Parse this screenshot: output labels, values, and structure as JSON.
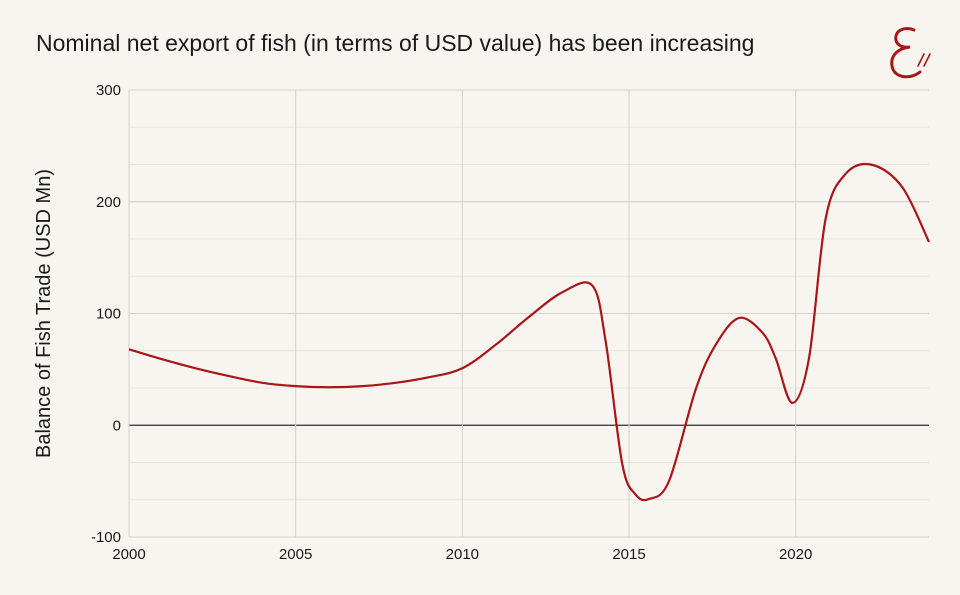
{
  "header": {
    "title": "Nominal net export of fish (in terms of USD value) has been increasing"
  },
  "colors": {
    "line": "#a81616",
    "background": "#f8f5f1",
    "grid_major": "#d3d0cc",
    "grid_minor": "#e7e4df",
    "zero_line": "#333333"
  },
  "chart_data": {
    "type": "line",
    "title": "Nominal net export of fish (in terms of USD value) has been increasing",
    "xlabel": "",
    "ylabel": "Balance of Fish Trade (USD Mn)",
    "xlim": [
      2000,
      2024
    ],
    "ylim": [
      -100,
      300
    ],
    "x_ticks": [
      "2000",
      "2005",
      "2010",
      "2015",
      "2020"
    ],
    "y_ticks": [
      "300",
      "200",
      "100",
      "0",
      "-100"
    ],
    "grid": true,
    "legend": "none",
    "series": [
      {
        "x": [
          2000,
          2001,
          2002,
          2003,
          2004,
          2005,
          2006,
          2007,
          2008,
          2009,
          2010,
          2011,
          2012,
          2013,
          2013.9,
          2014.3,
          2014.8,
          2015.2,
          2015.6,
          2016.2,
          2017,
          2017.6,
          2018.3,
          2019,
          2019.4,
          2019.9,
          2020.4,
          2020.9,
          2021.5,
          2022.3,
          2023.2,
          2024
        ],
        "y": [
          68,
          59,
          51,
          44,
          38,
          35,
          34,
          35,
          38,
          43,
          51,
          72,
          97,
          119,
          125,
          75,
          -35,
          -62,
          -66,
          -50,
          32,
          72,
          96,
          83,
          60,
          20,
          60,
          185,
          225,
          233,
          213,
          164
        ]
      }
    ]
  }
}
